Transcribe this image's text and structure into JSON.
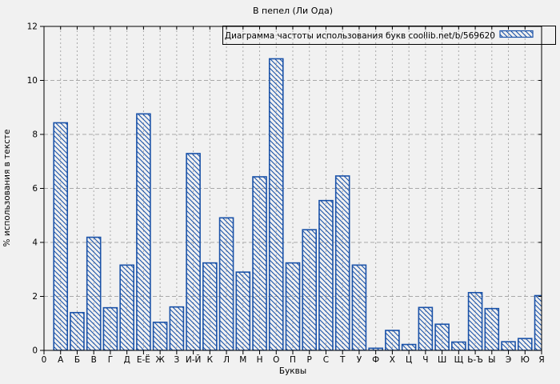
{
  "colors": {
    "bar": "#1a52a8",
    "background": "#f1f1f1",
    "grid": "#a9a9a9",
    "axis": "#000000"
  },
  "chart_data": {
    "type": "bar",
    "title": "В пепел (Ли Ода)",
    "xlabel": "Буквы",
    "ylabel": "% использования в тексте",
    "legend_label": "Диаграмма частоты использования букв coollib.net/b/569620",
    "legend_position": "top-right",
    "x_origin_label": "0",
    "categories": [
      "А",
      "Б",
      "В",
      "Г",
      "Д",
      "Е-Ё",
      "Ж",
      "З",
      "И-Й",
      "К",
      "Л",
      "М",
      "Н",
      "О",
      "П",
      "Р",
      "С",
      "Т",
      "У",
      "Ф",
      "Х",
      "Ц",
      "Ч",
      "Ш",
      "Щ",
      "Ь-Ъ",
      "Ы",
      "Э",
      "Ю",
      "Я"
    ],
    "values": [
      8.43,
      1.4,
      4.19,
      1.58,
      3.16,
      8.76,
      1.04,
      1.61,
      7.29,
      3.24,
      4.91,
      2.9,
      6.43,
      10.8,
      3.24,
      4.47,
      5.55,
      6.46,
      3.16,
      0.08,
      0.74,
      0.22,
      1.59,
      0.97,
      0.31,
      2.14,
      1.55,
      0.32,
      0.44,
      2.03
    ],
    "ylim": [
      0,
      12
    ],
    "yticks": [
      0,
      2,
      4,
      6,
      8,
      10,
      12
    ],
    "grid": true,
    "hatch": "backslash-diagonal"
  }
}
